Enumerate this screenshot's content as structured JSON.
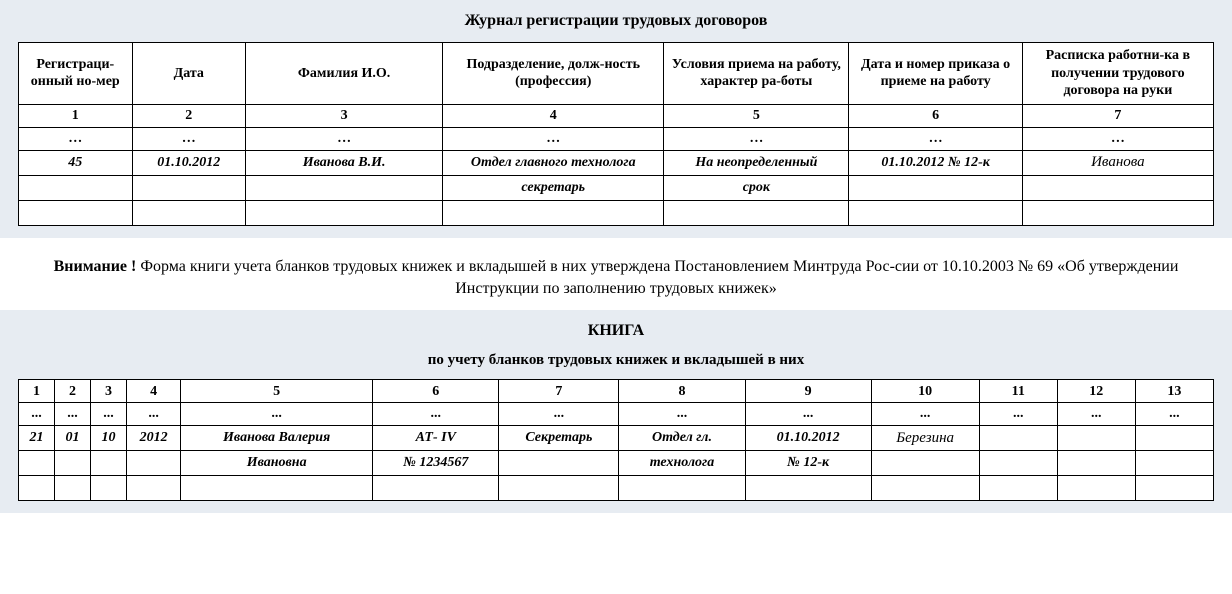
{
  "colors": {
    "section_bg": "#e7ecf2",
    "page_bg": "#ffffff",
    "border": "#000000",
    "text": "#000000"
  },
  "section1": {
    "title": "Журнал регистрации трудовых договоров",
    "headers": [
      "Регистраци-онный но-мер",
      "Дата",
      "Фамилия И.О.",
      "Подразделение, долж-ность (профессия)",
      "Условия приема на работу, характер ра-боты",
      "Дата и номер приказа о приеме на работу",
      "Расписка работни-ка в получении трудового договора на руки"
    ],
    "numrow": [
      "1",
      "2",
      "3",
      "4",
      "5",
      "6",
      "7"
    ],
    "dotsrow": [
      "…",
      "…",
      "…",
      "…",
      "…",
      "…",
      "…"
    ],
    "row1": [
      "45",
      "01.10.2012",
      "Иванова В.И.",
      "Отдел главного технолога",
      "На неопределенный",
      "01.10.2012 № 12-к",
      "Иванова"
    ],
    "row2": [
      "",
      "",
      "",
      "секретарь",
      "срок",
      "",
      ""
    ],
    "row3": [
      "",
      "",
      "",
      "",
      "",
      "",
      ""
    ]
  },
  "notice": {
    "bold": "Внимание !",
    "text": " Форма книги учета бланков трудовых книжек  и вкладышей в них утверждена Постановлением Минтруда Рос-сии от 10.10.2003 № 69  «Об утверждении Инструкции по заполнению трудовых книжек»"
  },
  "section2": {
    "title1": "КНИГА",
    "title2": "по учету бланков трудовых книжек и вкладышей в них",
    "numrow": [
      "1",
      "2",
      "3",
      "4",
      "5",
      "6",
      "7",
      "8",
      "9",
      "10",
      "11",
      "12",
      "13"
    ],
    "dotsrow": [
      "...",
      "...",
      "...",
      "...",
      "...",
      "...",
      "...",
      "...",
      "...",
      "...",
      "...",
      "...",
      "..."
    ],
    "row1": [
      "21",
      "01",
      "10",
      "2012",
      "Иванова Валерия",
      "АТ- IV",
      "Секретарь",
      "Отдел гл.",
      "01.10.2012",
      "Березина",
      "",
      "",
      ""
    ],
    "row2": [
      "",
      "",
      "",
      "",
      "Ивановна",
      "№ 1234567",
      "",
      "технолога",
      "№ 12-к",
      "",
      "",
      "",
      ""
    ],
    "row3": [
      "",
      "",
      "",
      "",
      "",
      "",
      "",
      "",
      "",
      "",
      "",
      "",
      ""
    ]
  }
}
